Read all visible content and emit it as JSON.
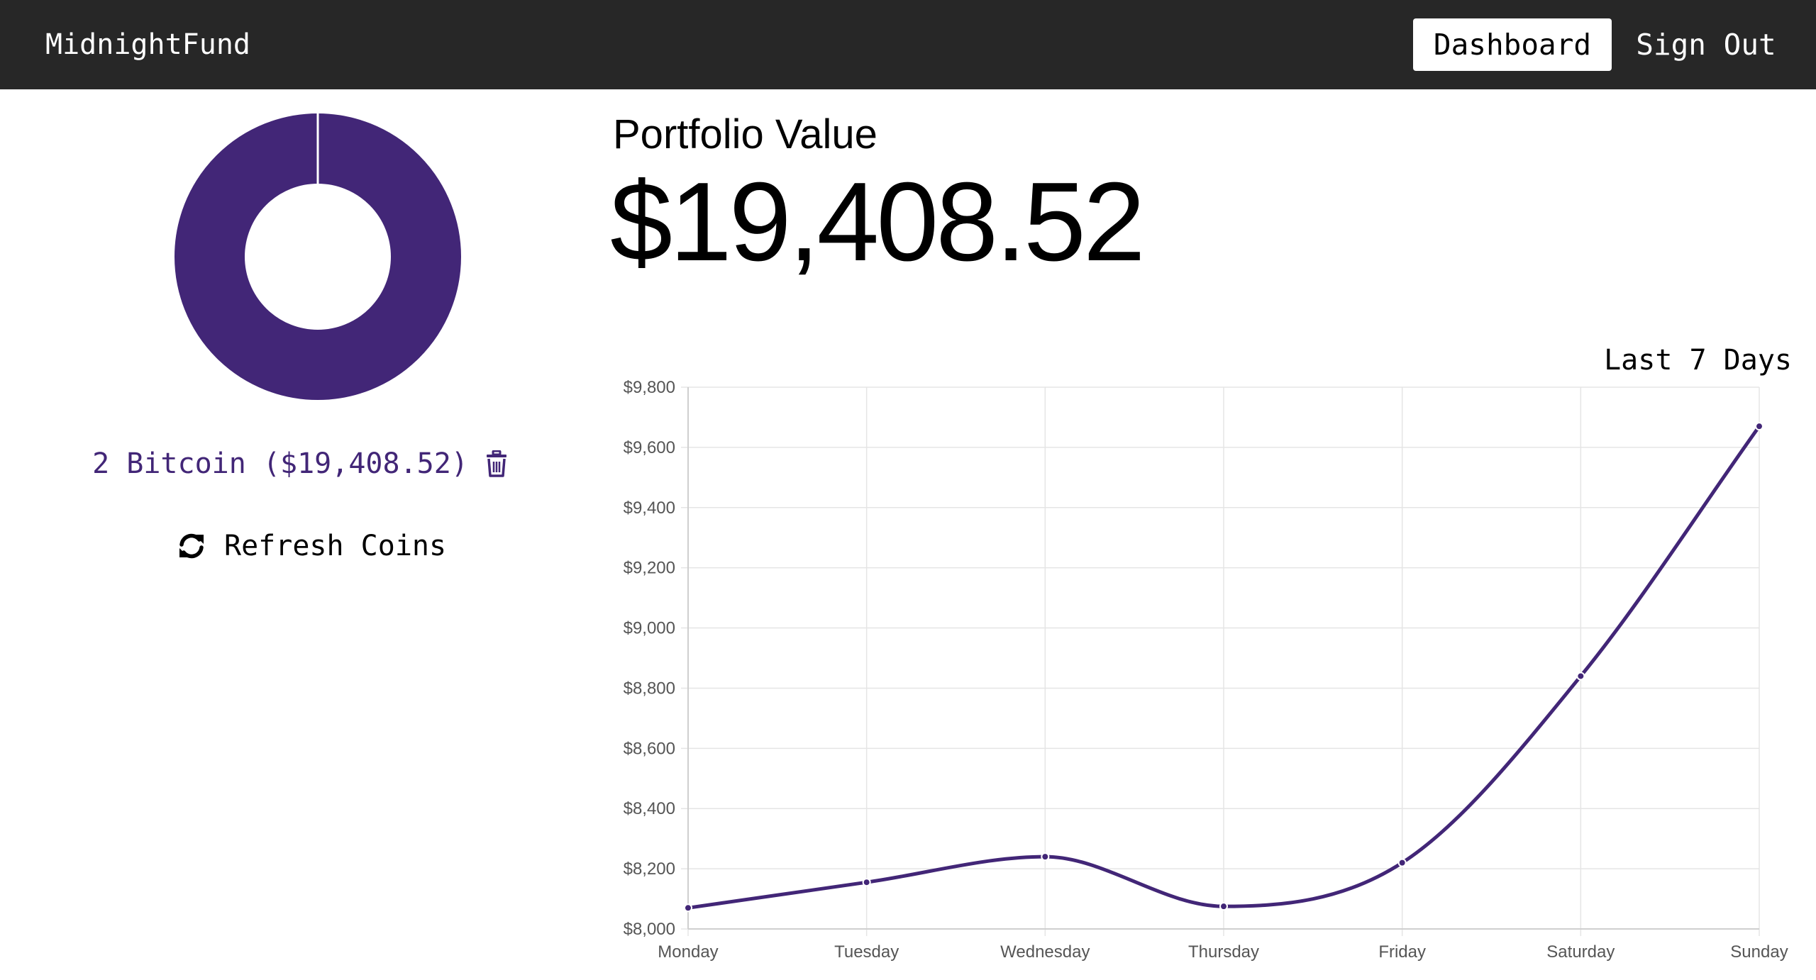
{
  "navbar": {
    "brand": "MidnightFund",
    "dashboard_label": "Dashboard",
    "signout_label": "Sign Out"
  },
  "colors": {
    "accent": "#422677",
    "navbar_bg": "#272727",
    "grid": "#e5e5e5"
  },
  "holdings": {
    "items": [
      {
        "label": "2 Bitcoin ($19,408.52)",
        "share": 1.0
      }
    ],
    "delete_icon": "trash-icon"
  },
  "refresh": {
    "label": "Refresh Coins",
    "icon": "refresh-icon"
  },
  "portfolio": {
    "heading": "Portfolio Value",
    "value": "$19,408.52"
  },
  "chart_data": {
    "type": "line",
    "title": "Last 7 Days",
    "categories": [
      "Monday",
      "Tuesday",
      "Wednesday",
      "Thursday",
      "Friday",
      "Saturday",
      "Sunday"
    ],
    "series": [
      {
        "values": [
          8070,
          8155,
          8240,
          8075,
          8220,
          8840,
          9670
        ]
      }
    ],
    "ylim": [
      8000,
      9800
    ],
    "yticks": [
      8000,
      8200,
      8400,
      8600,
      8800,
      9000,
      9200,
      9400,
      9600,
      9800
    ],
    "ytick_labels": [
      "$8,000",
      "$8,200",
      "$8,400",
      "$8,600",
      "$8,800",
      "$9,000",
      "$9,200",
      "$9,400",
      "$9,600",
      "$9,800"
    ],
    "grid": true,
    "legend": "none"
  }
}
